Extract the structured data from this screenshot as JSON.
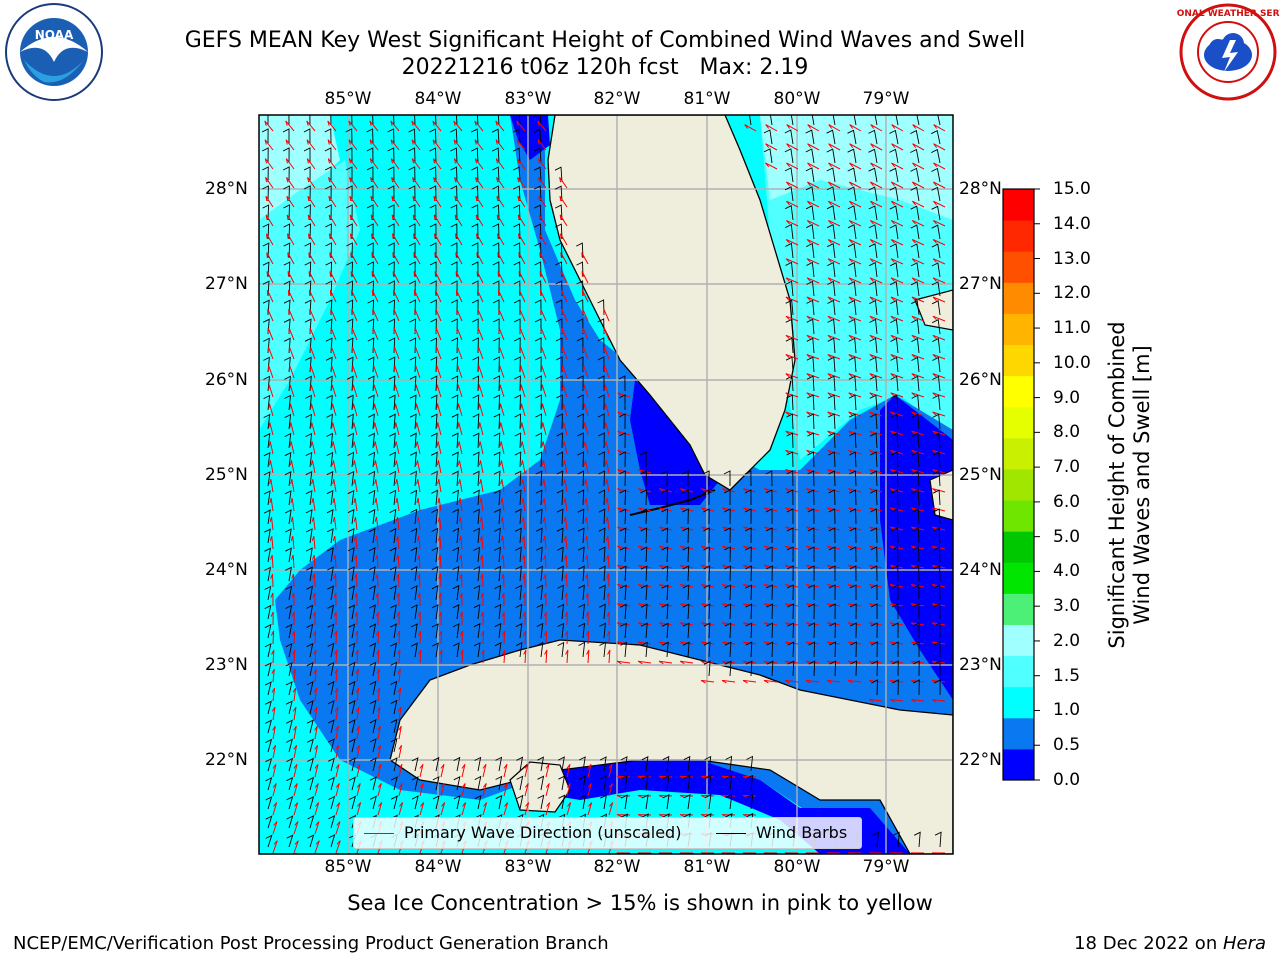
{
  "title_line1": "GEFS MEAN Key West Significant Height of Combined Wind Waves and Swell",
  "title_line2": "20221216 t06z 120h fcst   Max: 2.19",
  "logos": {
    "left": "noaa-logo",
    "left_text": "NOAA",
    "right": "nws-logo",
    "right_text": "NATIONAL WEATHER SERVICE"
  },
  "lon_labels": [
    "85°W",
    "84°W",
    "83°W",
    "82°W",
    "81°W",
    "80°W",
    "79°W"
  ],
  "lat_labels": [
    "28°N",
    "27°N",
    "26°N",
    "25°N",
    "24°N",
    "23°N",
    "22°N"
  ],
  "colorbar": {
    "ticks": [
      "15.0",
      "14.0",
      "13.0",
      "12.0",
      "11.0",
      "10.0",
      "9.0",
      "8.0",
      "7.0",
      "6.0",
      "5.0",
      "4.0",
      "3.0",
      "2.0",
      "1.5",
      "1.0",
      "0.5",
      "0.0"
    ],
    "colors": [
      "#0000ff",
      "#0a78f0",
      "#00ffff",
      "#50ffff",
      "#a0ffff",
      "#4cf076",
      "#00e600",
      "#00c800",
      "#6ee600",
      "#a0e600",
      "#c8f000",
      "#e6ff00",
      "#ffff00",
      "#ffd700",
      "#ffb400",
      "#ff8c00",
      "#ff5000",
      "#ff2800",
      "#ff0000"
    ],
    "label_line1": "Significant Height of Combined",
    "label_line2": "Wind Waves and Swell [m]"
  },
  "legend": {
    "wave_label": "Primary Wave Direction (unscaled)",
    "wind_label": "Wind Barbs",
    "wave_color": "#ff0000",
    "wind_color": "#000000"
  },
  "sea_ice_note": "Sea Ice Concentration > 15% is shown in pink to yellow",
  "footer_left": "NCEP/EMC/Verification Post Processing Product Generation Branch",
  "footer_date": "18 Dec 2022 on ",
  "footer_host": "Hera",
  "colors": {
    "land": "#efeddc",
    "grid": "#b0b0b0",
    "sea_low": "#0000ff",
    "sea_mid": "#0a78f0",
    "sea_high": "#00ffff",
    "sea_1_5": "#50ffff",
    "sea_2": "#a0ffff"
  }
}
